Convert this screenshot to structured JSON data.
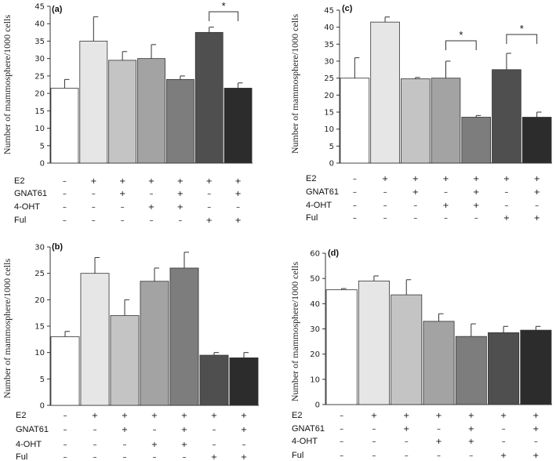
{
  "colors": [
    "#ffffff",
    "#e6e6e6",
    "#c4c4c4",
    "#a3a3a3",
    "#7d7d7d",
    "#4f4f4f",
    "#2c2c2c"
  ],
  "row_labels": [
    "E2",
    "GNAT61",
    "4-OHT",
    "Ful"
  ],
  "conditions": [
    [
      "–",
      "+",
      "+",
      "+",
      "+",
      "+",
      "+"
    ],
    [
      "–",
      "–",
      "+",
      "–",
      "+",
      "–",
      "+"
    ],
    [
      "–",
      "–",
      "–",
      "+",
      "+",
      "–",
      "–"
    ],
    [
      "–",
      "–",
      "–",
      "–",
      "–",
      "+",
      "+"
    ]
  ],
  "ylabel": "Number of mammosphere/1000 cells",
  "chart_data": [
    {
      "type": "bar",
      "panel": "(a)",
      "ylim": [
        0,
        45
      ],
      "ticks": [
        0,
        5,
        10,
        15,
        20,
        25,
        30,
        35,
        40,
        45
      ],
      "values": [
        21.5,
        35,
        29.5,
        30,
        24,
        37.5,
        21.5
      ],
      "errors": [
        2.5,
        7,
        2.5,
        4,
        1,
        1.5,
        1.5
      ],
      "significance": [
        {
          "from": 5,
          "to": 6,
          "label": "*"
        }
      ]
    },
    {
      "type": "bar",
      "panel": "(c)",
      "ylim": [
        0,
        45
      ],
      "ticks": [
        0,
        5,
        10,
        15,
        20,
        25,
        30,
        35,
        40,
        45
      ],
      "values": [
        25,
        41.5,
        24.8,
        25,
        13.5,
        27.5,
        13.5
      ],
      "errors": [
        6,
        1.5,
        0.4,
        5,
        0.5,
        4.8,
        1.5
      ],
      "significance": [
        {
          "from": 3,
          "to": 4,
          "label": "*"
        },
        {
          "from": 5,
          "to": 6,
          "label": "*"
        }
      ]
    },
    {
      "type": "bar",
      "panel": "(b)",
      "ylim": [
        0,
        30
      ],
      "ticks": [
        0,
        5,
        10,
        15,
        20,
        25,
        30
      ],
      "values": [
        13,
        25,
        17,
        23.5,
        26,
        9.5,
        9
      ],
      "errors": [
        1,
        3,
        3,
        2.5,
        3,
        0.5,
        1
      ],
      "significance": []
    },
    {
      "type": "bar",
      "panel": "(d)",
      "ylim": [
        0,
        60
      ],
      "ticks": [
        0,
        10,
        20,
        30,
        40,
        50,
        60
      ],
      "values": [
        45.5,
        49,
        43.5,
        33,
        27,
        28.5,
        29.5
      ],
      "errors": [
        0.5,
        2,
        6,
        3,
        5,
        2.5,
        1.5
      ],
      "significance": []
    }
  ]
}
